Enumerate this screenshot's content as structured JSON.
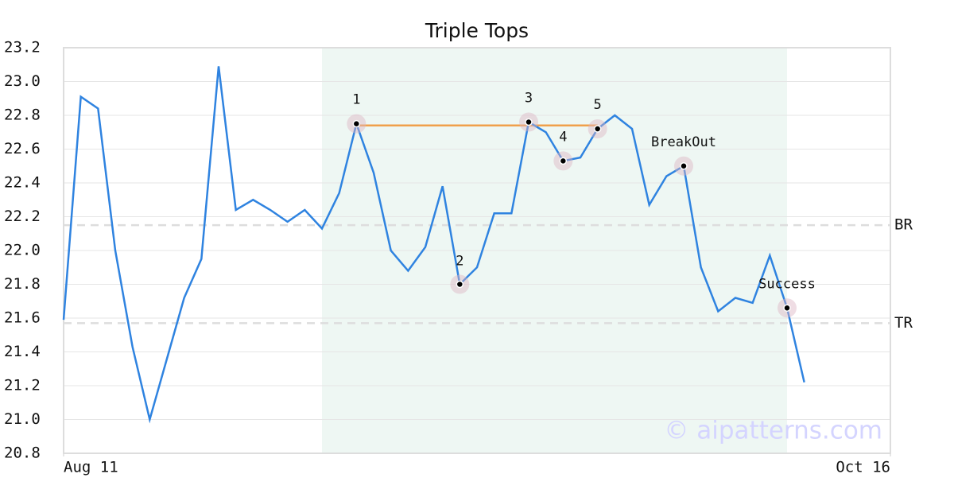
{
  "chart_data": {
    "type": "line",
    "title": "Triple Tops",
    "color": "#2f83e0",
    "values": [
      21.59,
      22.91,
      22.84,
      22.0,
      21.43,
      21.0,
      21.36,
      21.72,
      21.95,
      23.09,
      22.24,
      22.3,
      22.24,
      22.17,
      22.24,
      22.13,
      22.34,
      22.75,
      22.46,
      22.0,
      21.88,
      22.02,
      22.38,
      21.8,
      21.9,
      22.22,
      22.22,
      22.76,
      22.7,
      22.53,
      22.55,
      22.72,
      22.8,
      22.72,
      22.27,
      22.44,
      22.5,
      21.9,
      21.64,
      21.72,
      21.69,
      21.97,
      21.66,
      21.22
    ],
    "xlim": [
      0,
      48
    ],
    "xticks": [
      {
        "value": 0,
        "label": "Aug 11"
      },
      {
        "value": 48,
        "label": "Oct 16"
      }
    ],
    "ylim": [
      20.8,
      23.2
    ],
    "yticks": [
      20.8,
      {
        "value": 21,
        "label": "21.0"
      },
      21.2,
      21.4,
      21.6,
      21.8,
      {
        "value": 22,
        "label": "22.0"
      },
      22.2,
      22.4,
      22.6,
      22.8,
      {
        "value": 23,
        "label": "23.0"
      },
      23.2
    ],
    "grid": true,
    "highlight_range": [
      15,
      42
    ],
    "pattern_line": {
      "x": [
        17,
        31
      ],
      "value": 22.74,
      "color": "#f0a04b"
    },
    "levels": [
      {
        "label": "BR",
        "value": 22.15
      },
      {
        "label": "TR",
        "value": 21.57
      }
    ],
    "points": [
      {
        "x": 17,
        "value": 22.75,
        "label": "1"
      },
      {
        "x": 23,
        "value": 21.8,
        "label": "2"
      },
      {
        "x": 27,
        "value": 22.76,
        "label": "3"
      },
      {
        "x": 29,
        "value": 22.53,
        "label": "4"
      },
      {
        "x": 31,
        "value": 22.72,
        "label": "5"
      },
      {
        "x": 36,
        "value": 22.5,
        "label": "BreakOut"
      },
      {
        "x": 42,
        "value": 21.66,
        "label": "Success"
      }
    ],
    "watermark": "© aipatterns.com"
  }
}
